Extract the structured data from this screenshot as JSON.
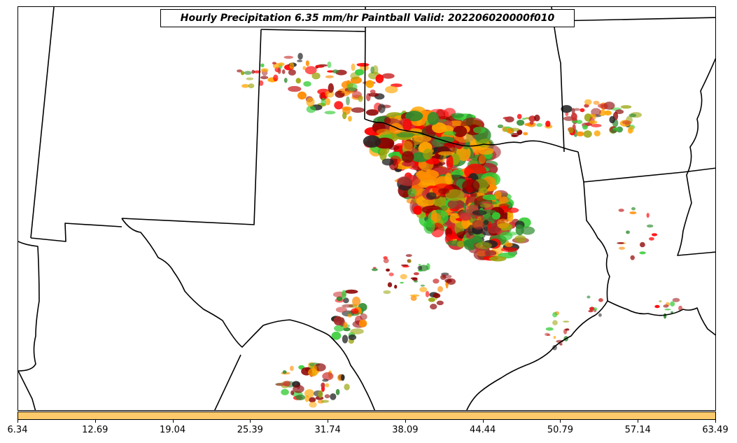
{
  "title": "Hourly Precipitation 6.35 mm/hr Paintball Valid: 202206020000f010",
  "colorbar": {
    "color": "#fdc96b",
    "ticks": [
      "6.34",
      "12.69",
      "19.04",
      "25.39",
      "31.74",
      "38.09",
      "44.44",
      "50.79",
      "57.14",
      "63.49"
    ]
  },
  "member_colors": [
    "#ff0000",
    "#ff8c00",
    "#8b0000",
    "#9aa50c",
    "#33cc33",
    "#2e8b2e",
    "#222222",
    "#a52a2a",
    "#ffa500",
    "#cc3333"
  ]
}
